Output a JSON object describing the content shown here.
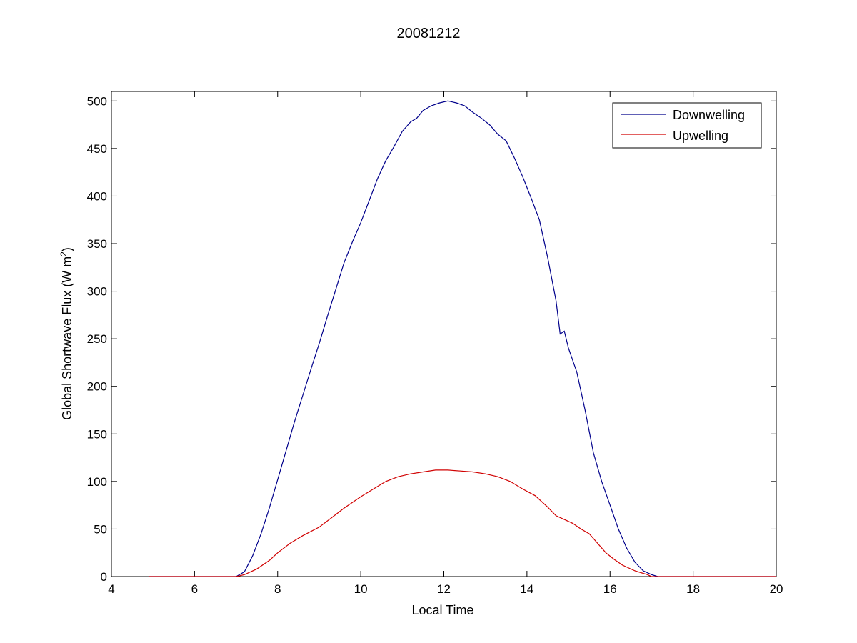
{
  "chart_data": {
    "type": "line",
    "title": "20081212",
    "xlabel": "Local Time",
    "ylabel_main": "Global Shortwave Flux (W m",
    "ylabel_sup": "2",
    "ylabel_end": ")",
    "xlim": [
      4,
      20
    ],
    "ylim": [
      0,
      510
    ],
    "xticks": [
      4,
      6,
      8,
      10,
      12,
      14,
      16,
      18,
      20
    ],
    "yticks": [
      0,
      50,
      100,
      150,
      200,
      250,
      300,
      350,
      400,
      450,
      500
    ],
    "grid": false,
    "legend_position": "top-right",
    "series": [
      {
        "name": "Downwelling",
        "color": "#00008b",
        "x": [
          4.9,
          6.0,
          7.0,
          7.2,
          7.4,
          7.6,
          7.8,
          8.0,
          8.2,
          8.4,
          8.6,
          8.8,
          9.0,
          9.2,
          9.4,
          9.6,
          9.8,
          10.0,
          10.2,
          10.4,
          10.6,
          10.8,
          11.0,
          11.2,
          11.35,
          11.5,
          11.7,
          11.9,
          12.1,
          12.3,
          12.5,
          12.7,
          12.9,
          13.1,
          13.3,
          13.5,
          13.7,
          13.9,
          14.1,
          14.3,
          14.5,
          14.7,
          14.8,
          14.9,
          15.0,
          15.2,
          15.4,
          15.6,
          15.8,
          16.0,
          16.2,
          16.4,
          16.6,
          16.8,
          17.0,
          17.15,
          17.3,
          18.0,
          19.0,
          20.0
        ],
        "y": [
          0,
          0,
          0,
          5,
          22,
          45,
          72,
          102,
          132,
          162,
          190,
          218,
          245,
          274,
          302,
          330,
          352,
          372,
          395,
          418,
          437,
          452,
          468,
          478,
          482,
          490,
          495,
          498,
          500,
          498,
          495,
          488,
          482,
          475,
          465,
          458,
          440,
          420,
          398,
          375,
          335,
          290,
          255,
          258,
          240,
          215,
          175,
          130,
          100,
          75,
          50,
          30,
          15,
          6,
          2,
          0,
          0,
          0,
          0,
          0
        ]
      },
      {
        "name": "Upwelling",
        "color": "#d00000",
        "x": [
          4.9,
          6.0,
          7.0,
          7.2,
          7.5,
          7.8,
          8.0,
          8.3,
          8.6,
          9.0,
          9.3,
          9.6,
          10.0,
          10.3,
          10.6,
          10.9,
          11.2,
          11.5,
          11.8,
          12.1,
          12.4,
          12.7,
          13.0,
          13.3,
          13.6,
          13.9,
          14.2,
          14.5,
          14.7,
          14.9,
          15.1,
          15.3,
          15.5,
          15.7,
          15.9,
          16.1,
          16.3,
          16.6,
          16.9,
          17.0,
          17.2,
          18.0,
          19.0,
          20.0
        ],
        "y": [
          0,
          0,
          0,
          2,
          8,
          17,
          25,
          35,
          43,
          52,
          62,
          72,
          84,
          92,
          100,
          105,
          108,
          110,
          112,
          112,
          111,
          110,
          108,
          105,
          100,
          92,
          85,
          73,
          64,
          60,
          56,
          50,
          45,
          35,
          25,
          18,
          12,
          6,
          2,
          0,
          0,
          0,
          0,
          0
        ]
      }
    ]
  }
}
